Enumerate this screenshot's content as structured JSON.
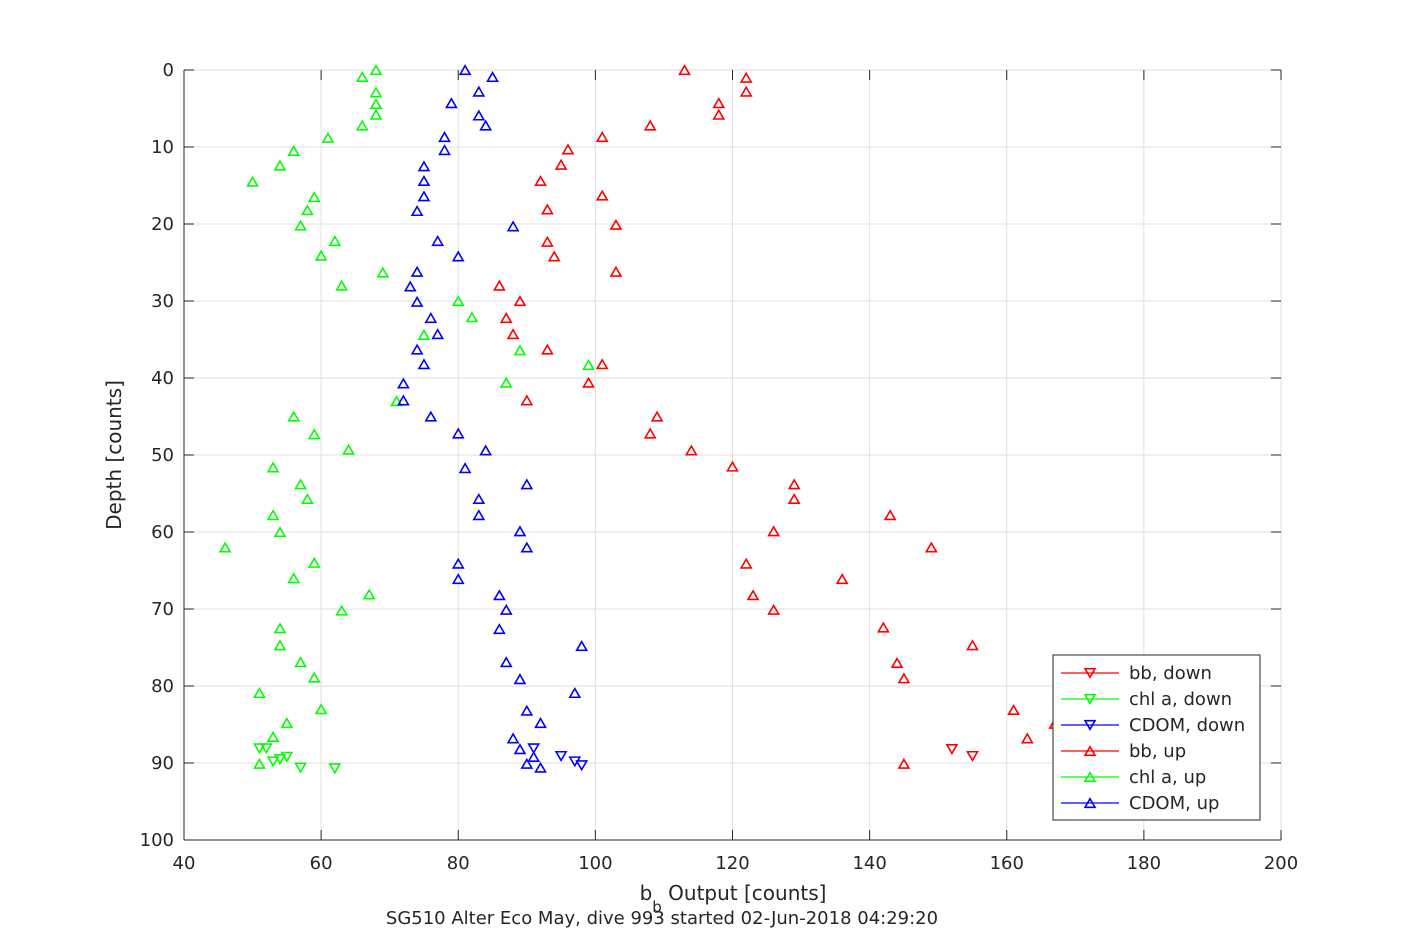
{
  "chart_data": {
    "type": "scatter",
    "xlabel": "b",
    "xlabel_sub": "b",
    "xlabel_suffix": " Output [counts]",
    "ylabel": "Depth [counts]",
    "caption": "SG510 Alter Eco May, dive 993 started 02-Jun-2018 04:29:20",
    "xlim": [
      40,
      200
    ],
    "ylim": [
      0,
      100
    ],
    "y_reversed": true,
    "grid": true,
    "legend_position": "bottom-right",
    "xticks": [
      "40",
      "60",
      "80",
      "100",
      "120",
      "140",
      "160",
      "180",
      "200"
    ],
    "yticks": [
      "0",
      "10",
      "20",
      "30",
      "40",
      "50",
      "60",
      "70",
      "80",
      "90",
      "100"
    ],
    "series": [
      {
        "name": "bb, down",
        "color": "#ff0000",
        "marker": "triangle-down",
        "points": [
          [
            152,
            88.2
          ],
          [
            155,
            89.1
          ]
        ]
      },
      {
        "name": "chl a, down",
        "color": "#00ff00",
        "marker": "triangle-down",
        "points": [
          [
            51,
            88.1
          ],
          [
            52,
            88.1
          ],
          [
            53,
            89.8
          ],
          [
            54,
            89.5
          ],
          [
            55,
            89.2
          ],
          [
            57,
            90.6
          ],
          [
            62,
            90.7
          ]
        ]
      },
      {
        "name": "CDOM, down",
        "color": "#0000ff",
        "marker": "triangle-down",
        "points": [
          [
            91,
            88.1
          ],
          [
            95,
            89.1
          ],
          [
            97,
            89.8
          ],
          [
            98,
            90.3
          ]
        ]
      },
      {
        "name": "bb, up",
        "color": "#ff0000",
        "marker": "triangle-up",
        "points": [
          [
            113,
            0.0
          ],
          [
            122,
            1.0
          ],
          [
            122,
            2.8
          ],
          [
            118,
            4.3
          ],
          [
            118,
            5.8
          ],
          [
            108,
            7.2
          ],
          [
            101,
            8.7
          ],
          [
            96,
            10.3
          ],
          [
            95,
            12.3
          ],
          [
            92,
            14.4
          ],
          [
            101,
            16.3
          ],
          [
            93,
            18.1
          ],
          [
            103,
            20.1
          ],
          [
            93,
            22.3
          ],
          [
            94,
            24.2
          ],
          [
            103,
            26.2
          ],
          [
            86,
            28.0
          ],
          [
            89,
            30.0
          ],
          [
            87,
            32.2
          ],
          [
            88,
            34.3
          ],
          [
            93,
            36.3
          ],
          [
            101,
            38.2
          ],
          [
            99,
            40.6
          ],
          [
            90,
            42.9
          ],
          [
            109,
            45.0
          ],
          [
            108,
            47.2
          ],
          [
            114,
            49.4
          ],
          [
            120,
            51.5
          ],
          [
            129,
            53.8
          ],
          [
            129,
            55.7
          ],
          [
            143,
            57.8
          ],
          [
            126,
            59.9
          ],
          [
            149,
            62.0
          ],
          [
            122,
            64.1
          ],
          [
            136,
            66.1
          ],
          [
            123,
            68.2
          ],
          [
            126,
            70.1
          ],
          [
            142,
            72.4
          ],
          [
            155,
            74.7
          ],
          [
            144,
            77.0
          ],
          [
            145,
            79.0
          ],
          [
            161,
            83.1
          ],
          [
            167,
            84.9
          ],
          [
            163,
            86.8
          ],
          [
            145,
            90.1
          ]
        ]
      },
      {
        "name": "chl a, up",
        "color": "#00ff00",
        "marker": "triangle-up",
        "points": [
          [
            68,
            0.0
          ],
          [
            66,
            0.9
          ],
          [
            68,
            2.9
          ],
          [
            68,
            4.4
          ],
          [
            68,
            5.8
          ],
          [
            66,
            7.2
          ],
          [
            61,
            8.8
          ],
          [
            56,
            10.5
          ],
          [
            54,
            12.4
          ],
          [
            50,
            14.5
          ],
          [
            59,
            16.5
          ],
          [
            58,
            18.2
          ],
          [
            57,
            20.2
          ],
          [
            62,
            22.2
          ],
          [
            60,
            24.1
          ],
          [
            69,
            26.3
          ],
          [
            63,
            28.0
          ],
          [
            80,
            30.0
          ],
          [
            82,
            32.1
          ],
          [
            75,
            34.4
          ],
          [
            89,
            36.4
          ],
          [
            99,
            38.3
          ],
          [
            87,
            40.6
          ],
          [
            71,
            43.0
          ],
          [
            56,
            45.0
          ],
          [
            59,
            47.3
          ],
          [
            64,
            49.3
          ],
          [
            53,
            51.6
          ],
          [
            57,
            53.8
          ],
          [
            58,
            55.7
          ],
          [
            53,
            57.8
          ],
          [
            54,
            60.0
          ],
          [
            46,
            62.0
          ],
          [
            59,
            64.0
          ],
          [
            56,
            66.0
          ],
          [
            67,
            68.1
          ],
          [
            63,
            70.2
          ],
          [
            54,
            72.5
          ],
          [
            54,
            74.7
          ],
          [
            57,
            76.9
          ],
          [
            59,
            78.9
          ],
          [
            51,
            80.9
          ],
          [
            60,
            83.0
          ],
          [
            55,
            84.8
          ],
          [
            53,
            86.6
          ],
          [
            51,
            90.1
          ]
        ]
      },
      {
        "name": "CDOM, up",
        "color": "#0000ff",
        "marker": "triangle-up",
        "points": [
          [
            81,
            0.0
          ],
          [
            85,
            0.9
          ],
          [
            83,
            2.8
          ],
          [
            79,
            4.3
          ],
          [
            83,
            5.9
          ],
          [
            84,
            7.2
          ],
          [
            78,
            8.7
          ],
          [
            78,
            10.4
          ],
          [
            75,
            12.5
          ],
          [
            75,
            14.4
          ],
          [
            75,
            16.4
          ],
          [
            74,
            18.3
          ],
          [
            88,
            20.3
          ],
          [
            77,
            22.2
          ],
          [
            80,
            24.2
          ],
          [
            74,
            26.2
          ],
          [
            73,
            28.1
          ],
          [
            74,
            30.1
          ],
          [
            76,
            32.2
          ],
          [
            77,
            34.3
          ],
          [
            74,
            36.3
          ],
          [
            75,
            38.2
          ],
          [
            72,
            40.7
          ],
          [
            72,
            42.9
          ],
          [
            76,
            45.0
          ],
          [
            80,
            47.2
          ],
          [
            84,
            49.4
          ],
          [
            81,
            51.7
          ],
          [
            90,
            53.8
          ],
          [
            83,
            55.7
          ],
          [
            83,
            57.8
          ],
          [
            89,
            59.9
          ],
          [
            90,
            62.0
          ],
          [
            80,
            64.1
          ],
          [
            80,
            66.1
          ],
          [
            86,
            68.2
          ],
          [
            87,
            70.1
          ],
          [
            86,
            72.6
          ],
          [
            98,
            74.8
          ],
          [
            87,
            76.9
          ],
          [
            89,
            79.1
          ],
          [
            97,
            80.9
          ],
          [
            90,
            83.2
          ],
          [
            92,
            84.8
          ],
          [
            88,
            86.8
          ],
          [
            89,
            88.2
          ],
          [
            91,
            89.2
          ],
          [
            90,
            90.1
          ],
          [
            92,
            90.6
          ]
        ]
      }
    ]
  }
}
